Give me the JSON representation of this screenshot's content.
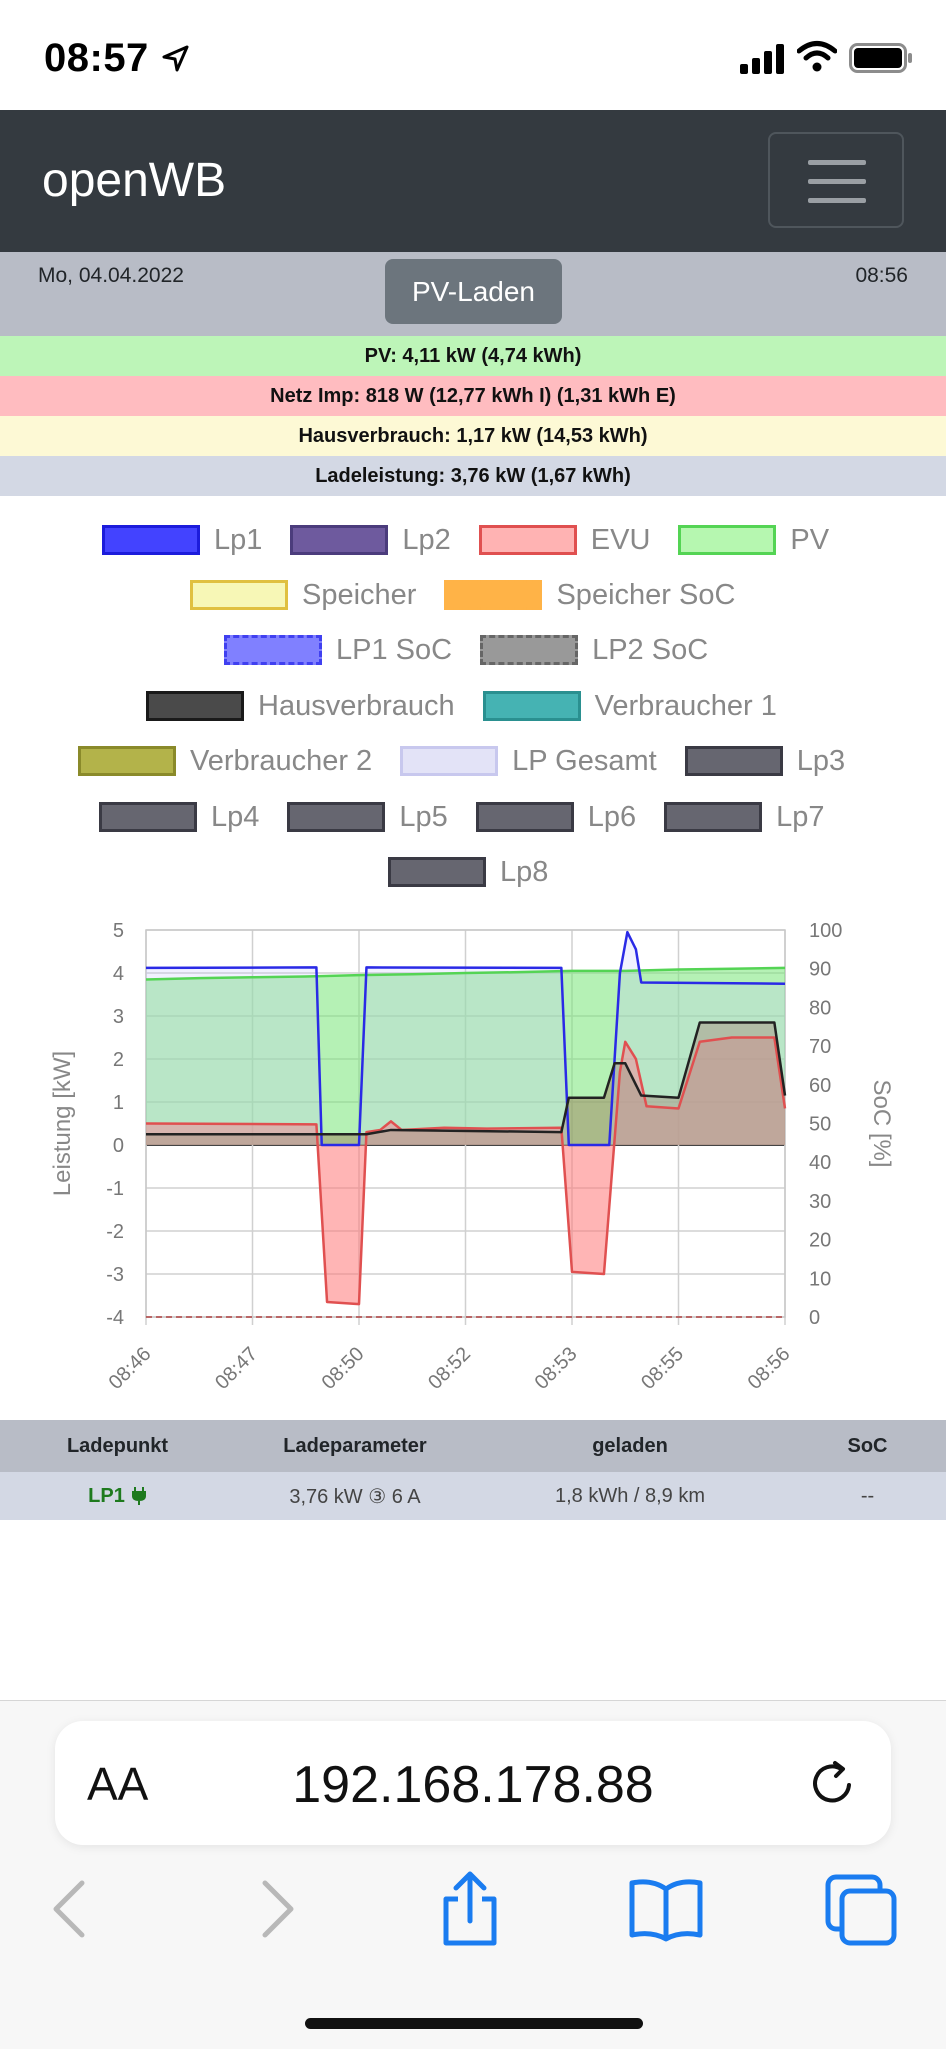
{
  "status_bar": {
    "time": "08:57"
  },
  "navbar": {
    "brand": "openWB"
  },
  "info": {
    "date": "Mo, 04.04.2022",
    "time": "08:56",
    "mode_button": "PV-Laden",
    "rows": [
      {
        "text": "PV: 4,11 kW (4,74 kWh)",
        "color": "#bdf5b8"
      },
      {
        "text": "Netz Imp: 818 W (12,77 kWh I) (1,31 kWh E)",
        "color": "#ffbcc0"
      },
      {
        "text": "Hausverbrauch: 1,17 kW (14,53 kWh)",
        "color": "#fdf9d5"
      },
      {
        "text": "Ladeleistung: 3,76 kW (1,67 kWh)",
        "color": "#d3d8e4"
      }
    ]
  },
  "legend": [
    {
      "label": "Lp1",
      "fill": "#4343ff",
      "border": "#1c1cdc",
      "dashed": false
    },
    {
      "label": "Lp2",
      "fill": "#6e5a9e",
      "border": "#4b3c7c",
      "dashed": false
    },
    {
      "label": "EVU",
      "fill": "#ffb3b3",
      "border": "#e05050",
      "dashed": false
    },
    {
      "label": "PV",
      "fill": "#b6f7b0",
      "border": "#54d454",
      "dashed": false
    },
    {
      "label": "Speicher",
      "fill": "#f7f7b6",
      "border": "#e0c040",
      "dashed": false
    },
    {
      "label": "Speicher SoC",
      "fill": "#ffb347",
      "border": "#ffb347",
      "dashed": true
    },
    {
      "label": "LP1 SoC",
      "fill": "#8080ff",
      "border": "#4040f0",
      "dashed": true
    },
    {
      "label": "LP2 SoC",
      "fill": "#999999",
      "border": "#666666",
      "dashed": true
    },
    {
      "label": "Hausverbrauch",
      "fill": "#4a4a4a",
      "border": "#1a1a1a",
      "dashed": false
    },
    {
      "label": "Verbraucher 1",
      "fill": "#45b3b3",
      "border": "#2a9090",
      "dashed": false
    },
    {
      "label": "Verbraucher 2",
      "fill": "#b3b34a",
      "border": "#8a8a2a",
      "dashed": false
    },
    {
      "label": "LP Gesamt",
      "fill": "#e3e3f7",
      "border": "#c8c8ee",
      "dashed": false
    },
    {
      "label": "Lp3",
      "fill": "#666670",
      "border": "#3a3a44",
      "dashed": false
    },
    {
      "label": "Lp4",
      "fill": "#666670",
      "border": "#3a3a44",
      "dashed": false
    },
    {
      "label": "Lp5",
      "fill": "#666670",
      "border": "#3a3a44",
      "dashed": false
    },
    {
      "label": "Lp6",
      "fill": "#666670",
      "border": "#3a3a44",
      "dashed": false
    },
    {
      "label": "Lp7",
      "fill": "#666670",
      "border": "#3a3a44",
      "dashed": false
    },
    {
      "label": "Lp8",
      "fill": "#666670",
      "border": "#3a3a44",
      "dashed": false
    }
  ],
  "chart_data": {
    "type": "area",
    "ylabel": "Leistung [kW]",
    "y2label": "SoC [%]",
    "ylim": [
      -4,
      5
    ],
    "y2lim": [
      0,
      100
    ],
    "yticks": [
      5,
      4,
      3,
      2,
      1,
      0,
      -1,
      -2,
      -3,
      -4
    ],
    "y2ticks": [
      100,
      90,
      80,
      70,
      60,
      50,
      40,
      30,
      20,
      10,
      0
    ],
    "xlim": [
      0,
      10
    ],
    "xticks": [
      {
        "x": 0,
        "label": "08:46"
      },
      {
        "x": 1,
        "label": "08:47"
      },
      {
        "x": 2,
        "label": "08:50"
      },
      {
        "x": 3,
        "label": "08:52"
      },
      {
        "x": 4,
        "label": "08:53"
      },
      {
        "x": 5,
        "label": "08:55"
      },
      {
        "x": 6,
        "label": "08:56"
      }
    ],
    "grid": true,
    "series": [
      {
        "name": "PV",
        "color": "#54d454",
        "fill": "rgba(120,230,120,0.55)",
        "points": [
          [
            0,
            3.85
          ],
          [
            0.5,
            3.88
          ],
          [
            1,
            3.9
          ],
          [
            1.5,
            3.92
          ],
          [
            2,
            3.95
          ],
          [
            2.5,
            3.97
          ],
          [
            3,
            4.0
          ],
          [
            3.5,
            4.02
          ],
          [
            4,
            4.05
          ],
          [
            4.5,
            4.05
          ],
          [
            5,
            4.08
          ],
          [
            5.5,
            4.1
          ],
          [
            6,
            4.12
          ]
        ]
      },
      {
        "name": "Lp1",
        "color": "#2a2ae6",
        "fill": "none",
        "points": [
          [
            0,
            4.12
          ],
          [
            1.6,
            4.13
          ],
          [
            1.65,
            0
          ],
          [
            2.0,
            0
          ],
          [
            2.07,
            4.13
          ],
          [
            3.9,
            4.12
          ],
          [
            3.97,
            0
          ],
          [
            4.35,
            0
          ],
          [
            4.45,
            4.0
          ],
          [
            4.52,
            4.95
          ],
          [
            4.6,
            4.55
          ],
          [
            4.65,
            3.78
          ],
          [
            6,
            3.75
          ]
        ]
      },
      {
        "name": "EVU",
        "color": "#e05050",
        "fill": "rgba(255,120,120,0.55)",
        "points": [
          [
            0,
            0.5
          ],
          [
            1.6,
            0.48
          ],
          [
            1.7,
            -3.65
          ],
          [
            2.0,
            -3.7
          ],
          [
            2.07,
            0.3
          ],
          [
            2.2,
            0.35
          ],
          [
            2.3,
            0.55
          ],
          [
            2.4,
            0.35
          ],
          [
            2.8,
            0.4
          ],
          [
            3.2,
            0.38
          ],
          [
            3.9,
            0.4
          ],
          [
            4.0,
            -2.95
          ],
          [
            4.3,
            -3.0
          ],
          [
            4.45,
            1.7
          ],
          [
            4.5,
            2.4
          ],
          [
            4.6,
            2.0
          ],
          [
            4.7,
            0.9
          ],
          [
            5.0,
            0.85
          ],
          [
            5.2,
            2.4
          ],
          [
            5.5,
            2.5
          ],
          [
            5.9,
            2.5
          ],
          [
            6.0,
            0.85
          ]
        ]
      },
      {
        "name": "Hausverbrauch",
        "color": "#222222",
        "fill": "rgba(160,140,100,0.55)",
        "points": [
          [
            0,
            0.25
          ],
          [
            1.6,
            0.25
          ],
          [
            2.07,
            0.25
          ],
          [
            2.3,
            0.35
          ],
          [
            3.9,
            0.3
          ],
          [
            3.97,
            1.1
          ],
          [
            4.3,
            1.1
          ],
          [
            4.4,
            1.9
          ],
          [
            4.5,
            1.9
          ],
          [
            4.65,
            1.15
          ],
          [
            5.0,
            1.1
          ],
          [
            5.2,
            2.85
          ],
          [
            5.9,
            2.85
          ],
          [
            6.0,
            1.15
          ]
        ]
      },
      {
        "name": "Speicher",
        "color": "#b04040",
        "fill": "none",
        "points": [
          [
            0,
            -4.0
          ],
          [
            6,
            -4.0
          ]
        ]
      }
    ]
  },
  "table": {
    "headers": [
      "Ladepunkt",
      "Ladeparameter",
      "geladen",
      "SoC"
    ],
    "rows": [
      {
        "ladepunkt": "LP1",
        "parameter": "3,76 kW ③ 6 A",
        "geladen": "1,8 kWh / 8,9 km",
        "soc": "--"
      }
    ]
  },
  "browser": {
    "aa_label": "AA",
    "url": "192.168.178.88"
  }
}
